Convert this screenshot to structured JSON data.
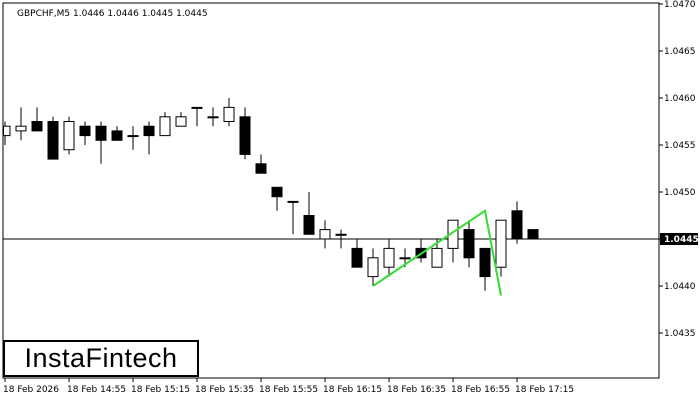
{
  "chart_data": {
    "type": "candlestick",
    "title": "GBPCHF,M5  1.0446 1.0446 1.0445 1.0445",
    "symbol": "GBPCHF,M5",
    "ylim": [
      1.043,
      1.047
    ],
    "y_ticks": [
      "1.0470",
      "1.0465",
      "1.0460",
      "1.0455",
      "1.0450",
      "1.0445",
      "1.0440",
      "1.0435"
    ],
    "x_ticks": [
      {
        "index": 0,
        "label": "18 Feb 2026"
      },
      {
        "index": 4,
        "label": "18 Feb 14:55"
      },
      {
        "index": 8,
        "label": "18 Feb 15:15"
      },
      {
        "index": 12,
        "label": "18 Feb 15:35"
      },
      {
        "index": 16,
        "label": "18 Feb 15:55"
      },
      {
        "index": 20,
        "label": "18 Feb 16:15"
      },
      {
        "index": 24,
        "label": "18 Feb 16:35"
      },
      {
        "index": 28,
        "label": "18 Feb 16:55"
      },
      {
        "index": 32,
        "label": "18 Feb 17:15"
      }
    ],
    "candles": [
      {
        "o": 1.0456,
        "h": 1.04575,
        "l": 1.0455,
        "c": 1.0457
      },
      {
        "o": 1.04565,
        "h": 1.0459,
        "l": 1.04555,
        "c": 1.0457
      },
      {
        "o": 1.04575,
        "h": 1.0459,
        "l": 1.04565,
        "c": 1.04565
      },
      {
        "o": 1.04575,
        "h": 1.0458,
        "l": 1.04535,
        "c": 1.04535
      },
      {
        "o": 1.04545,
        "h": 1.0458,
        "l": 1.0454,
        "c": 1.04575
      },
      {
        "o": 1.0457,
        "h": 1.04575,
        "l": 1.0455,
        "c": 1.0456
      },
      {
        "o": 1.0457,
        "h": 1.04575,
        "l": 1.0453,
        "c": 1.04555
      },
      {
        "o": 1.04565,
        "h": 1.0457,
        "l": 1.04555,
        "c": 1.04555
      },
      {
        "o": 1.0456,
        "h": 1.0457,
        "l": 1.04545,
        "c": 1.0456
      },
      {
        "o": 1.0457,
        "h": 1.04575,
        "l": 1.0454,
        "c": 1.0456
      },
      {
        "o": 1.0456,
        "h": 1.04585,
        "l": 1.0456,
        "c": 1.0458
      },
      {
        "o": 1.0457,
        "h": 1.04585,
        "l": 1.0457,
        "c": 1.0458
      },
      {
        "o": 1.0459,
        "h": 1.0459,
        "l": 1.0457,
        "c": 1.0459
      },
      {
        "o": 1.0458,
        "h": 1.0459,
        "l": 1.0457,
        "c": 1.0458
      },
      {
        "o": 1.04575,
        "h": 1.046,
        "l": 1.0457,
        "c": 1.0459
      },
      {
        "o": 1.0458,
        "h": 1.0459,
        "l": 1.04535,
        "c": 1.0454
      },
      {
        "o": 1.0453,
        "h": 1.0454,
        "l": 1.0452,
        "c": 1.0452
      },
      {
        "o": 1.04505,
        "h": 1.04505,
        "l": 1.0448,
        "c": 1.04495
      },
      {
        "o": 1.0449,
        "h": 1.0449,
        "l": 1.04455,
        "c": 1.0449
      },
      {
        "o": 1.04475,
        "h": 1.045,
        "l": 1.04455,
        "c": 1.04455
      },
      {
        "o": 1.0445,
        "h": 1.0447,
        "l": 1.0444,
        "c": 1.0446
      },
      {
        "o": 1.04455,
        "h": 1.0446,
        "l": 1.0444,
        "c": 1.04455
      },
      {
        "o": 1.0444,
        "h": 1.0445,
        "l": 1.0442,
        "c": 1.0442
      },
      {
        "o": 1.0441,
        "h": 1.0444,
        "l": 1.044,
        "c": 1.0443
      },
      {
        "o": 1.0442,
        "h": 1.0445,
        "l": 1.0441,
        "c": 1.0444
      },
      {
        "o": 1.0443,
        "h": 1.0444,
        "l": 1.0442,
        "c": 1.0443
      },
      {
        "o": 1.0444,
        "h": 1.0445,
        "l": 1.04425,
        "c": 1.0443
      },
      {
        "o": 1.0442,
        "h": 1.0445,
        "l": 1.0442,
        "c": 1.0444
      },
      {
        "o": 1.0444,
        "h": 1.0447,
        "l": 1.04425,
        "c": 1.0447
      },
      {
        "o": 1.0446,
        "h": 1.0447,
        "l": 1.0442,
        "c": 1.0443
      },
      {
        "o": 1.0444,
        "h": 1.0444,
        "l": 1.04395,
        "c": 1.0441
      },
      {
        "o": 1.0442,
        "h": 1.0447,
        "l": 1.0441,
        "c": 1.0447
      },
      {
        "o": 1.0448,
        "h": 1.0449,
        "l": 1.04445,
        "c": 1.0445
      },
      {
        "o": 1.0446,
        "h": 1.0446,
        "l": 1.0445,
        "c": 1.0445
      }
    ],
    "current_price": {
      "value": 1.0445,
      "label": "1.0445"
    },
    "pattern": {
      "color": "#33dd33",
      "points": [
        {
          "index": 23,
          "price": 1.044
        },
        {
          "index": 30,
          "price": 1.0448
        },
        {
          "index": 31,
          "price": 1.0439
        }
      ]
    },
    "colors": {
      "bull": "#ffffff",
      "bear": "#000000",
      "outline": "#000000",
      "price_label_bg": "#000000"
    }
  },
  "logo": {
    "text": "InstaFintech"
  }
}
